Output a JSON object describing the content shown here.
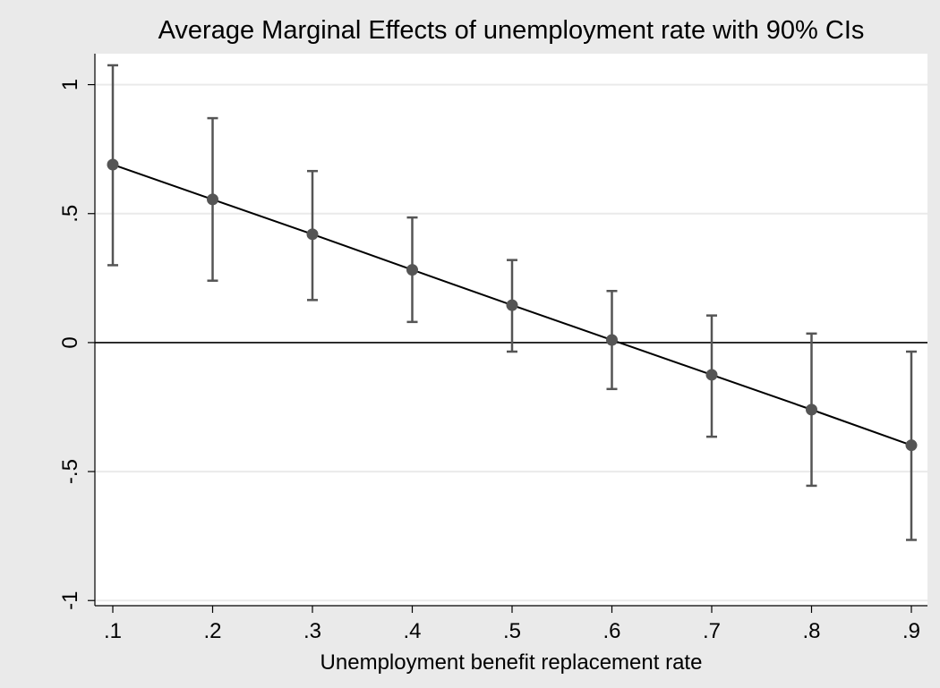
{
  "chart_data": {
    "type": "scatter",
    "title": "Average Marginal Effects of unemployment rate with 90% CIs",
    "xlabel": "Unemployment benefit replacement rate",
    "ylabel": "",
    "x": [
      0.1,
      0.2,
      0.3,
      0.4,
      0.5,
      0.6,
      0.7,
      0.8,
      0.9
    ],
    "x_tick_labels": [
      ".1",
      ".2",
      ".3",
      ".4",
      ".5",
      ".6",
      ".7",
      ".8",
      ".9"
    ],
    "y_tick_values": [
      -1,
      -0.5,
      0,
      0.5,
      1
    ],
    "y_tick_labels": [
      "-1",
      "-.5",
      "0",
      ".5",
      "1"
    ],
    "xlim": [
      0.1,
      0.9
    ],
    "ylim": [
      -1.02,
      1.12
    ],
    "series": [
      {
        "values": [
          0.69,
          0.555,
          0.42,
          0.282,
          0.145,
          0.01,
          -0.125,
          -0.26,
          -0.398
        ],
        "ci_lower": [
          0.3,
          0.24,
          0.165,
          0.08,
          -0.035,
          -0.18,
          -0.365,
          -0.555,
          -0.765
        ],
        "ci_upper": [
          1.075,
          0.87,
          0.665,
          0.485,
          0.32,
          0.2,
          0.105,
          0.035,
          -0.035
        ]
      }
    ],
    "reference_line_y": 0,
    "grid": true,
    "legend": "none",
    "colors": {
      "background": "#eaeaea",
      "plot_area": "#ffffff",
      "gridline": "#eaeaea",
      "line": "#000000",
      "marker": "#555555",
      "ci": "#555555"
    }
  }
}
